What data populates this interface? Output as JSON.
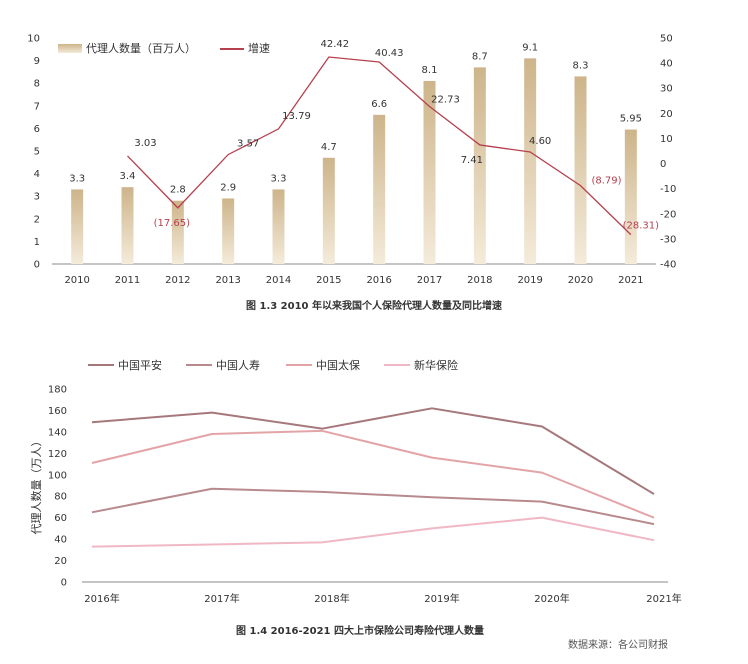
{
  "chart_data": [
    {
      "type": "bar",
      "caption": "图 1.3    2010 年以来我国个人保险代理人数量及同比增速",
      "categories": [
        "2010",
        "2011",
        "2012",
        "2013",
        "2014",
        "2015",
        "2016",
        "2017",
        "2018",
        "2019",
        "2020",
        "2021"
      ],
      "y_ticks": [
        "0",
        "1",
        "2",
        "3",
        "4",
        "5",
        "6",
        "7",
        "8",
        "9",
        "10"
      ],
      "y2_ticks": [
        "-40",
        "-30",
        "-20",
        "-10",
        "0",
        "10",
        "20",
        "30",
        "40",
        "50"
      ],
      "ylim": [
        0,
        10
      ],
      "y2lim": [
        -40,
        50
      ],
      "grid": false,
      "legend": "top-left",
      "series": [
        {
          "name": "代理人数量（百万人）",
          "kind": "bar",
          "axis": "left",
          "color": "#cdb48a",
          "values": [
            3.3,
            3.4,
            2.8,
            2.9,
            3.3,
            4.7,
            6.6,
            8.1,
            8.7,
            9.1,
            8.3,
            5.95
          ],
          "labels": [
            "3.3",
            "3.4",
            "2.8",
            "2.9",
            "3.3",
            "4.7",
            "6.6",
            "8.1",
            "8.7",
            "9.1",
            "8.3",
            "5.95"
          ]
        },
        {
          "name": "增速",
          "kind": "line",
          "axis": "right",
          "color": "#b5414e",
          "values": [
            null,
            3.03,
            -17.65,
            3.57,
            13.79,
            42.42,
            40.43,
            22.73,
            7.41,
            4.6,
            -8.79,
            -28.31
          ],
          "labels": [
            "",
            "3.03",
            "(17.65)",
            "3.57",
            "13.79",
            "42.42",
            "40.43",
            "22.73",
            "7.41",
            "4.60",
            "(8.79)",
            "(28.31)"
          ]
        }
      ]
    },
    {
      "type": "line",
      "caption": "图 1.4   2016-2021 四大上市保险公司寿险代理人数量",
      "source": "数据来源：各公司财报",
      "ylabel": "代理人数量（万人）",
      "categories": [
        "2016年",
        "2017年",
        "2018年",
        "2019年",
        "2020年",
        "2021年"
      ],
      "y_ticks": [
        "0",
        "20",
        "40",
        "60",
        "80",
        "100",
        "120",
        "140",
        "160",
        "180"
      ],
      "ylim": [
        0,
        180
      ],
      "grid": false,
      "legend": "top",
      "series": [
        {
          "name": "中国平安",
          "color": "#a6787c",
          "values": [
            149,
            158,
            143,
            162,
            145,
            82
          ]
        },
        {
          "name": "中国人寿",
          "color": "#b88a8e",
          "values": [
            65,
            87,
            84,
            79,
            75,
            54
          ]
        },
        {
          "name": "中国太保",
          "color": "#e3a4a8",
          "values": [
            111,
            138,
            141,
            116,
            102,
            60
          ]
        },
        {
          "name": "新华保险",
          "color": "#f0b7c4",
          "values": [
            33,
            35,
            37,
            50,
            60,
            39
          ]
        }
      ]
    }
  ]
}
